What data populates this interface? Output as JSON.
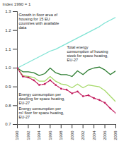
{
  "chart_data": {
    "type": "line",
    "y_label": "Index 1990 = 1",
    "x": [
      1990,
      1991,
      1992,
      1993,
      1994,
      1995,
      1996,
      1997,
      1998,
      1999,
      2000,
      2001,
      2002,
      2003,
      2004,
      2005,
      2006,
      2007,
      2008
    ],
    "xlim": [
      1990,
      2008
    ],
    "xticks": [
      1990,
      1992,
      1994,
      1996,
      1998,
      2000,
      2002,
      2004,
      2006,
      2008
    ],
    "ylim": [
      0.7,
      1.3
    ],
    "yticks": [
      0.7,
      0.8,
      0.9,
      {
        "value": 1,
        "label": "1.0"
      },
      1.1,
      1.2,
      1.3
    ],
    "grid": false,
    "series": [
      {
        "name": "Growth in floor area of housing for 15 EU countries with available data",
        "color": "#7fe3d4",
        "line_style": "solid",
        "values": [
          1.0,
          1.015,
          1.03,
          1.045,
          1.06,
          1.075,
          1.09,
          1.1,
          1.115,
          1.13,
          1.145,
          1.16,
          1.175,
          1.19,
          1.205,
          1.22,
          1.24,
          1.255,
          1.27
        ]
      },
      {
        "name": "Total energy consumption of housing stock for space heating, EU-27",
        "color": "#2e7d32",
        "line_style": "solid",
        "values": [
          1.0,
          0.98,
          0.98,
          0.975,
          0.96,
          0.97,
          1.0,
          0.975,
          0.965,
          0.965,
          0.955,
          0.985,
          0.965,
          0.99,
          1.0,
          1.005,
          0.99,
          0.965,
          0.985
        ]
      },
      {
        "name": "Energy consumption per dwelling for space heating, EU-27",
        "color": "#a6d96a",
        "line_style": "solid",
        "values": [
          1.0,
          0.96,
          0.955,
          0.95,
          0.93,
          0.93,
          0.955,
          0.93,
          0.915,
          0.91,
          0.895,
          0.915,
          0.895,
          0.91,
          0.905,
          0.9,
          0.88,
          0.85,
          0.82
        ]
      },
      {
        "name": "Energy consumption per m² floor for space heating, EU-27",
        "color": "#c2185b",
        "line_style": "dashed",
        "marker": "circle",
        "values": [
          1.0,
          0.955,
          0.95,
          0.935,
          0.91,
          0.915,
          0.935,
          0.91,
          0.89,
          0.885,
          0.865,
          0.875,
          0.85,
          0.855,
          0.84,
          0.83,
          0.815,
          0.785,
          0.76
        ]
      }
    ]
  }
}
